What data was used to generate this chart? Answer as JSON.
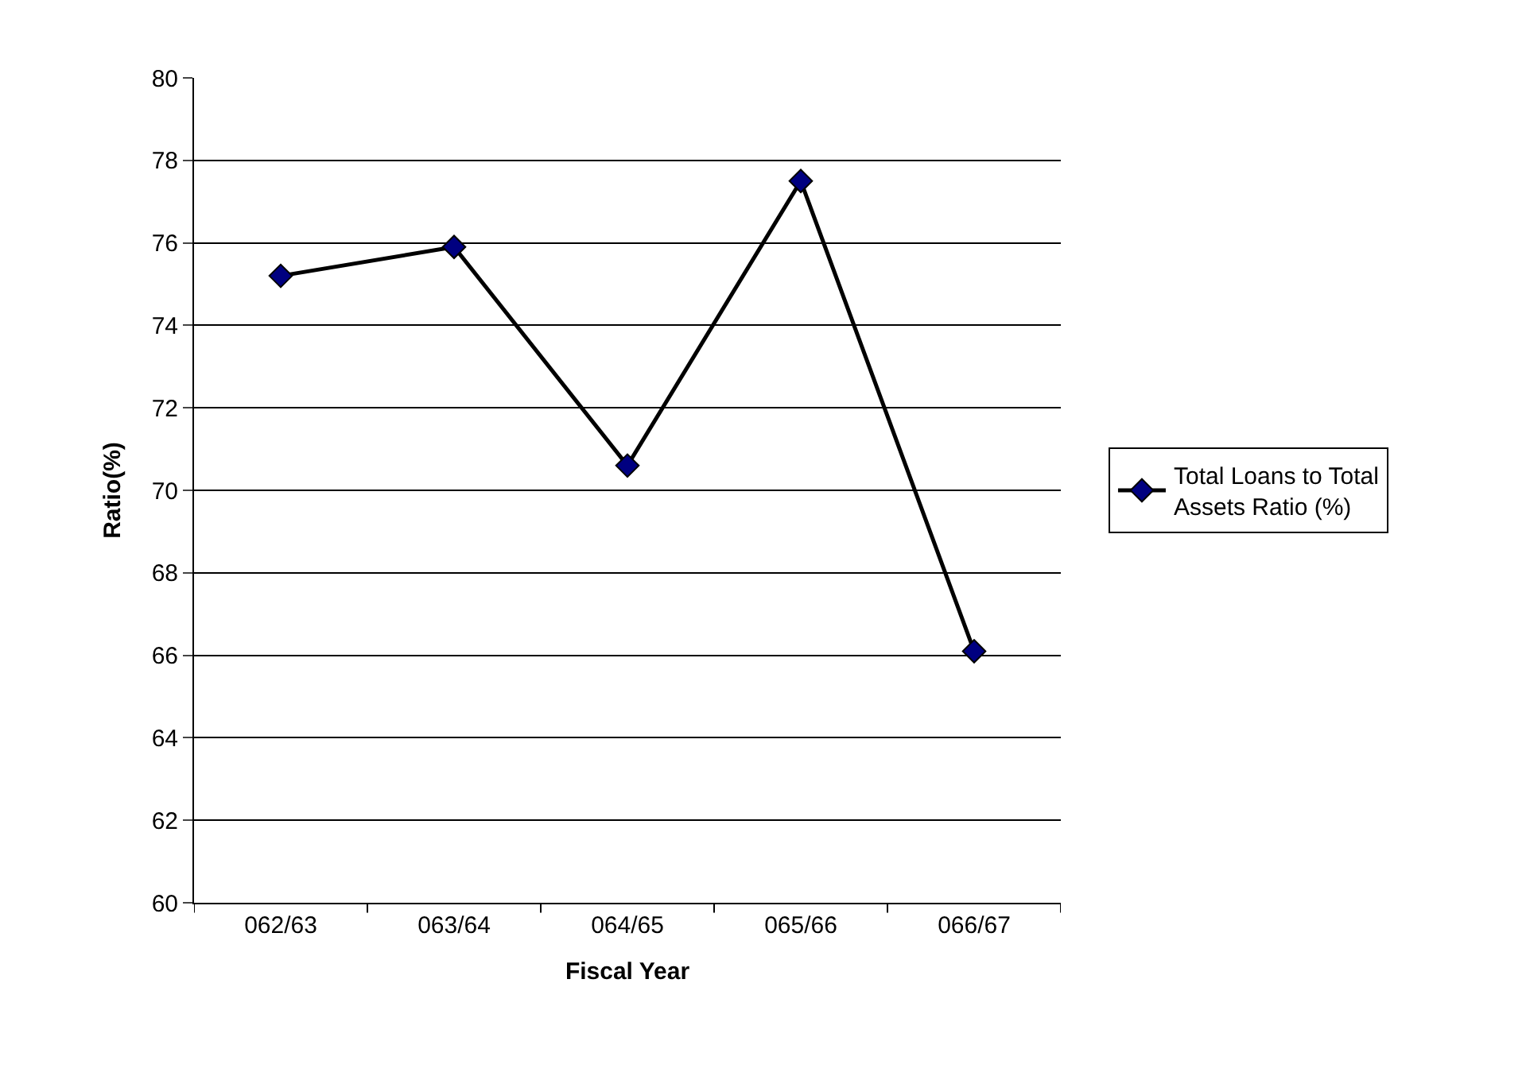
{
  "chart_data": {
    "type": "line",
    "xlabel": "Fiscal Year",
    "ylabel": "Ratio(%)",
    "categories": [
      "062/63",
      "063/64",
      "064/65",
      "065/66",
      "066/67"
    ],
    "series": [
      {
        "name": "Total Loans to Total Assets Ratio (%)",
        "color": "#000000",
        "values": [
          75.2,
          75.9,
          70.6,
          77.5,
          66.1
        ]
      }
    ],
    "ylim": [
      60,
      80
    ],
    "yticks": [
      60,
      62,
      64,
      66,
      68,
      70,
      72,
      74,
      76,
      78,
      80
    ],
    "grid": "y",
    "legend": "right",
    "marker": "diamond",
    "line_style": "solid"
  }
}
